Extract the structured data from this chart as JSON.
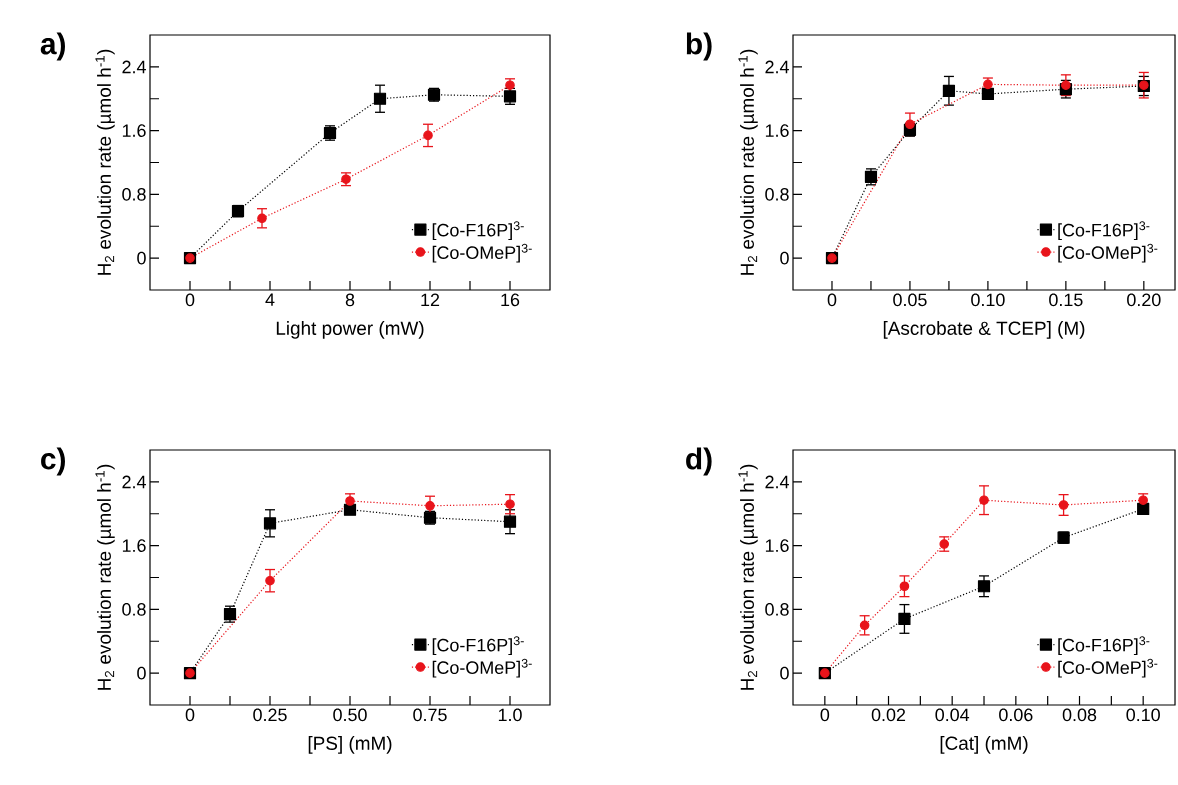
{
  "chart_data": [
    {
      "type": "line",
      "title": "a)",
      "xlabel": "Light power (mW)",
      "ylabel": "H$_{2}$ evolution rate (µmol h$^{-1}$)",
      "line_style": "dotted",
      "legend": "bottom right",
      "xlim": [
        -2,
        18
      ],
      "ylim": [
        -0.4,
        2.8
      ],
      "xticks": [
        0,
        {
          "value": 2,
          "label": null
        },
        4,
        {
          "value": 6,
          "label": null
        },
        8,
        {
          "value": 10,
          "label": null
        },
        12,
        {
          "value": 14,
          "label": null
        },
        16
      ],
      "yticks": [
        0,
        {
          "value": 0.4,
          "label": null
        },
        0.8,
        {
          "value": 1.2,
          "label": null
        },
        1.6,
        {
          "value": 2.0,
          "label": null
        },
        2.4
      ],
      "series": [
        {
          "name": "[Co-F16P]$^{3-}$",
          "color": "#000000",
          "marker": "square",
          "x": [
            0,
            2.4,
            7.0,
            9.5,
            12.2,
            16
          ],
          "values": [
            0,
            0.59,
            1.57,
            2.0,
            2.05,
            2.03
          ],
          "errors": [
            null,
            0.07,
            0.09,
            0.17,
            0.08,
            0.1
          ]
        },
        {
          "name": "[Co-OMeP]$^{3-}$",
          "color": "#e8141b",
          "marker": "circle",
          "x": [
            0,
            3.6,
            7.8,
            11.9,
            16
          ],
          "values": [
            0,
            0.5,
            0.99,
            1.54,
            2.17
          ],
          "errors": [
            null,
            0.12,
            0.08,
            0.14,
            0.08
          ]
        }
      ]
    },
    {
      "type": "line",
      "title": "b)",
      "xlabel": "[Ascrobate & TCEP] (M)",
      "ylabel": "H$_{2}$ evolution rate (µmol h$^{-1}$)",
      "line_style": "dotted",
      "legend": "bottom right",
      "xlim": [
        -0.025,
        0.22
      ],
      "ylim": [
        -0.4,
        2.8
      ],
      "xticks": [
        0,
        {
          "value": 0.025,
          "label": null
        },
        0.05,
        {
          "value": 0.075,
          "label": null
        },
        {
          "value": 0.1,
          "label": "0.10"
        },
        {
          "value": 0.125,
          "label": null
        },
        0.15,
        {
          "value": 0.175,
          "label": null
        },
        {
          "value": 0.2,
          "label": "0.20"
        }
      ],
      "yticks": [
        0,
        {
          "value": 0.4,
          "label": null
        },
        0.8,
        {
          "value": 1.2,
          "label": null
        },
        1.6,
        {
          "value": 2.0,
          "label": null
        },
        2.4
      ],
      "series": [
        {
          "name": "[Co-F16P]$^{3-}$",
          "color": "#000000",
          "marker": "square",
          "x": [
            0,
            0.025,
            0.05,
            0.075,
            0.1,
            0.15,
            0.2
          ],
          "values": [
            0,
            1.02,
            1.61,
            2.1,
            2.06,
            2.12,
            2.16
          ],
          "errors": [
            null,
            0.1,
            0.08,
            0.18,
            0.06,
            0.11,
            0.12
          ]
        },
        {
          "name": "[Co-OMeP]$^{3-}$",
          "color": "#e8141b",
          "marker": "circle",
          "x": [
            0,
            0.05,
            0.1,
            0.15,
            0.2
          ],
          "values": [
            0,
            1.68,
            2.18,
            2.17,
            2.17
          ],
          "errors": [
            null,
            0.14,
            0.08,
            0.13,
            0.16
          ]
        }
      ]
    },
    {
      "type": "line",
      "title": "c)",
      "xlabel": "[PS] (mM)",
      "ylabel": "H$_{2}$ evolution rate (µmol h$^{-1}$)",
      "line_style": "dotted",
      "legend": "bottom right",
      "xlim": [
        -0.125,
        1.125
      ],
      "ylim": [
        -0.4,
        2.8
      ],
      "xticks": [
        0,
        {
          "value": 0.125,
          "label": null
        },
        0.25,
        {
          "value": 0.375,
          "label": null
        },
        {
          "value": 0.5,
          "label": "0.50"
        },
        {
          "value": 0.625,
          "label": null
        },
        0.75,
        {
          "value": 0.875,
          "label": null
        },
        {
          "value": 1.0,
          "label": "1.0"
        }
      ],
      "yticks": [
        0,
        {
          "value": 0.4,
          "label": null
        },
        0.8,
        {
          "value": 1.2,
          "label": null
        },
        1.6,
        {
          "value": 2.0,
          "label": null
        },
        2.4
      ],
      "series": [
        {
          "name": "[Co-F16P]$^{3-}$",
          "color": "#000000",
          "marker": "square",
          "x": [
            0,
            0.125,
            0.25,
            0.5,
            0.75,
            1.0
          ],
          "values": [
            0,
            0.74,
            1.88,
            2.05,
            1.95,
            1.9
          ],
          "errors": [
            null,
            0.1,
            0.17,
            0.05,
            0.08,
            0.15
          ]
        },
        {
          "name": "[Co-OMeP]$^{3-}$",
          "color": "#e8141b",
          "marker": "circle",
          "x": [
            0,
            0.25,
            0.5,
            0.75,
            1.0
          ],
          "values": [
            0,
            1.16,
            2.16,
            2.1,
            2.12
          ],
          "errors": [
            null,
            0.14,
            0.09,
            0.12,
            0.12
          ]
        }
      ]
    },
    {
      "type": "line",
      "title": "d)",
      "xlabel": "[Cat] (mM)",
      "ylabel": "H$_{2}$ evolution rate (µmol h$^{-1}$)",
      "line_style": "dotted",
      "legend": "bottom right",
      "xlim": [
        -0.01,
        0.11
      ],
      "ylim": [
        -0.4,
        2.8
      ],
      "xticks": [
        0,
        {
          "value": 0.01,
          "label": null
        },
        0.02,
        {
          "value": 0.03,
          "label": null
        },
        0.04,
        {
          "value": 0.05,
          "label": null
        },
        0.06,
        {
          "value": 0.07,
          "label": null
        },
        0.08,
        {
          "value": 0.09,
          "label": null
        },
        {
          "value": 0.1,
          "label": "0.10"
        }
      ],
      "yticks": [
        0,
        {
          "value": 0.4,
          "label": null
        },
        0.8,
        {
          "value": 1.2,
          "label": null
        },
        1.6,
        {
          "value": 2.0,
          "label": null
        },
        2.4
      ],
      "series": [
        {
          "name": "[Co-F16P]$^{3-}$",
          "color": "#000000",
          "marker": "square",
          "x": [
            0,
            0.025,
            0.05,
            0.075,
            0.1
          ],
          "values": [
            0,
            0.68,
            1.09,
            1.7,
            2.06
          ],
          "errors": [
            null,
            0.18,
            0.13,
            0.07,
            0.06
          ]
        },
        {
          "name": "[Co-OMeP]$^{3-}$",
          "color": "#e8141b",
          "marker": "circle",
          "x": [
            0,
            0.0125,
            0.025,
            0.0375,
            0.05,
            0.075,
            0.1
          ],
          "values": [
            0,
            0.6,
            1.09,
            1.62,
            2.17,
            2.11,
            2.17
          ],
          "errors": [
            null,
            0.12,
            0.13,
            0.09,
            0.18,
            0.13,
            0.08
          ]
        }
      ]
    }
  ]
}
